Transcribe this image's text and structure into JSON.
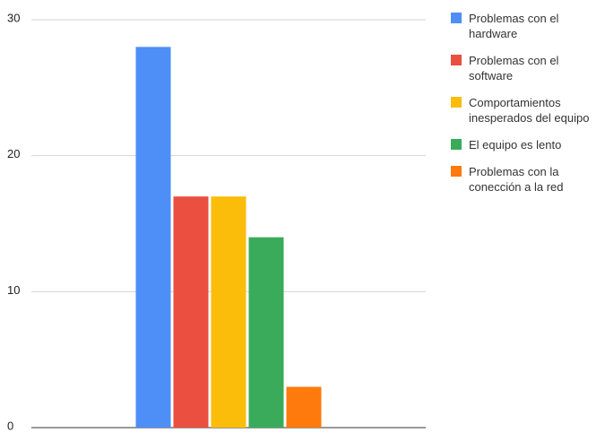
{
  "chart_data": {
    "type": "bar",
    "categories": [
      null
    ],
    "series": [
      {
        "name": "Problemas con el hardware",
        "color": "#4e8ef7",
        "values": [
          28
        ]
      },
      {
        "name": "Problemas con el software",
        "color": "#ea4f3f",
        "values": [
          17
        ]
      },
      {
        "name": "Comportamientos inesperados del equipo",
        "color": "#fbbd0a",
        "values": [
          17
        ]
      },
      {
        "name": "El equipo es lento",
        "color": "#3aab5a",
        "values": [
          14
        ]
      },
      {
        "name": "Problemas con la conección a la red",
        "color": "#ff7a0d",
        "values": [
          3
        ]
      }
    ],
    "ylim": [
      0,
      30
    ],
    "yticks": [
      0,
      10,
      20,
      30
    ],
    "grid": true,
    "legend": "right"
  }
}
